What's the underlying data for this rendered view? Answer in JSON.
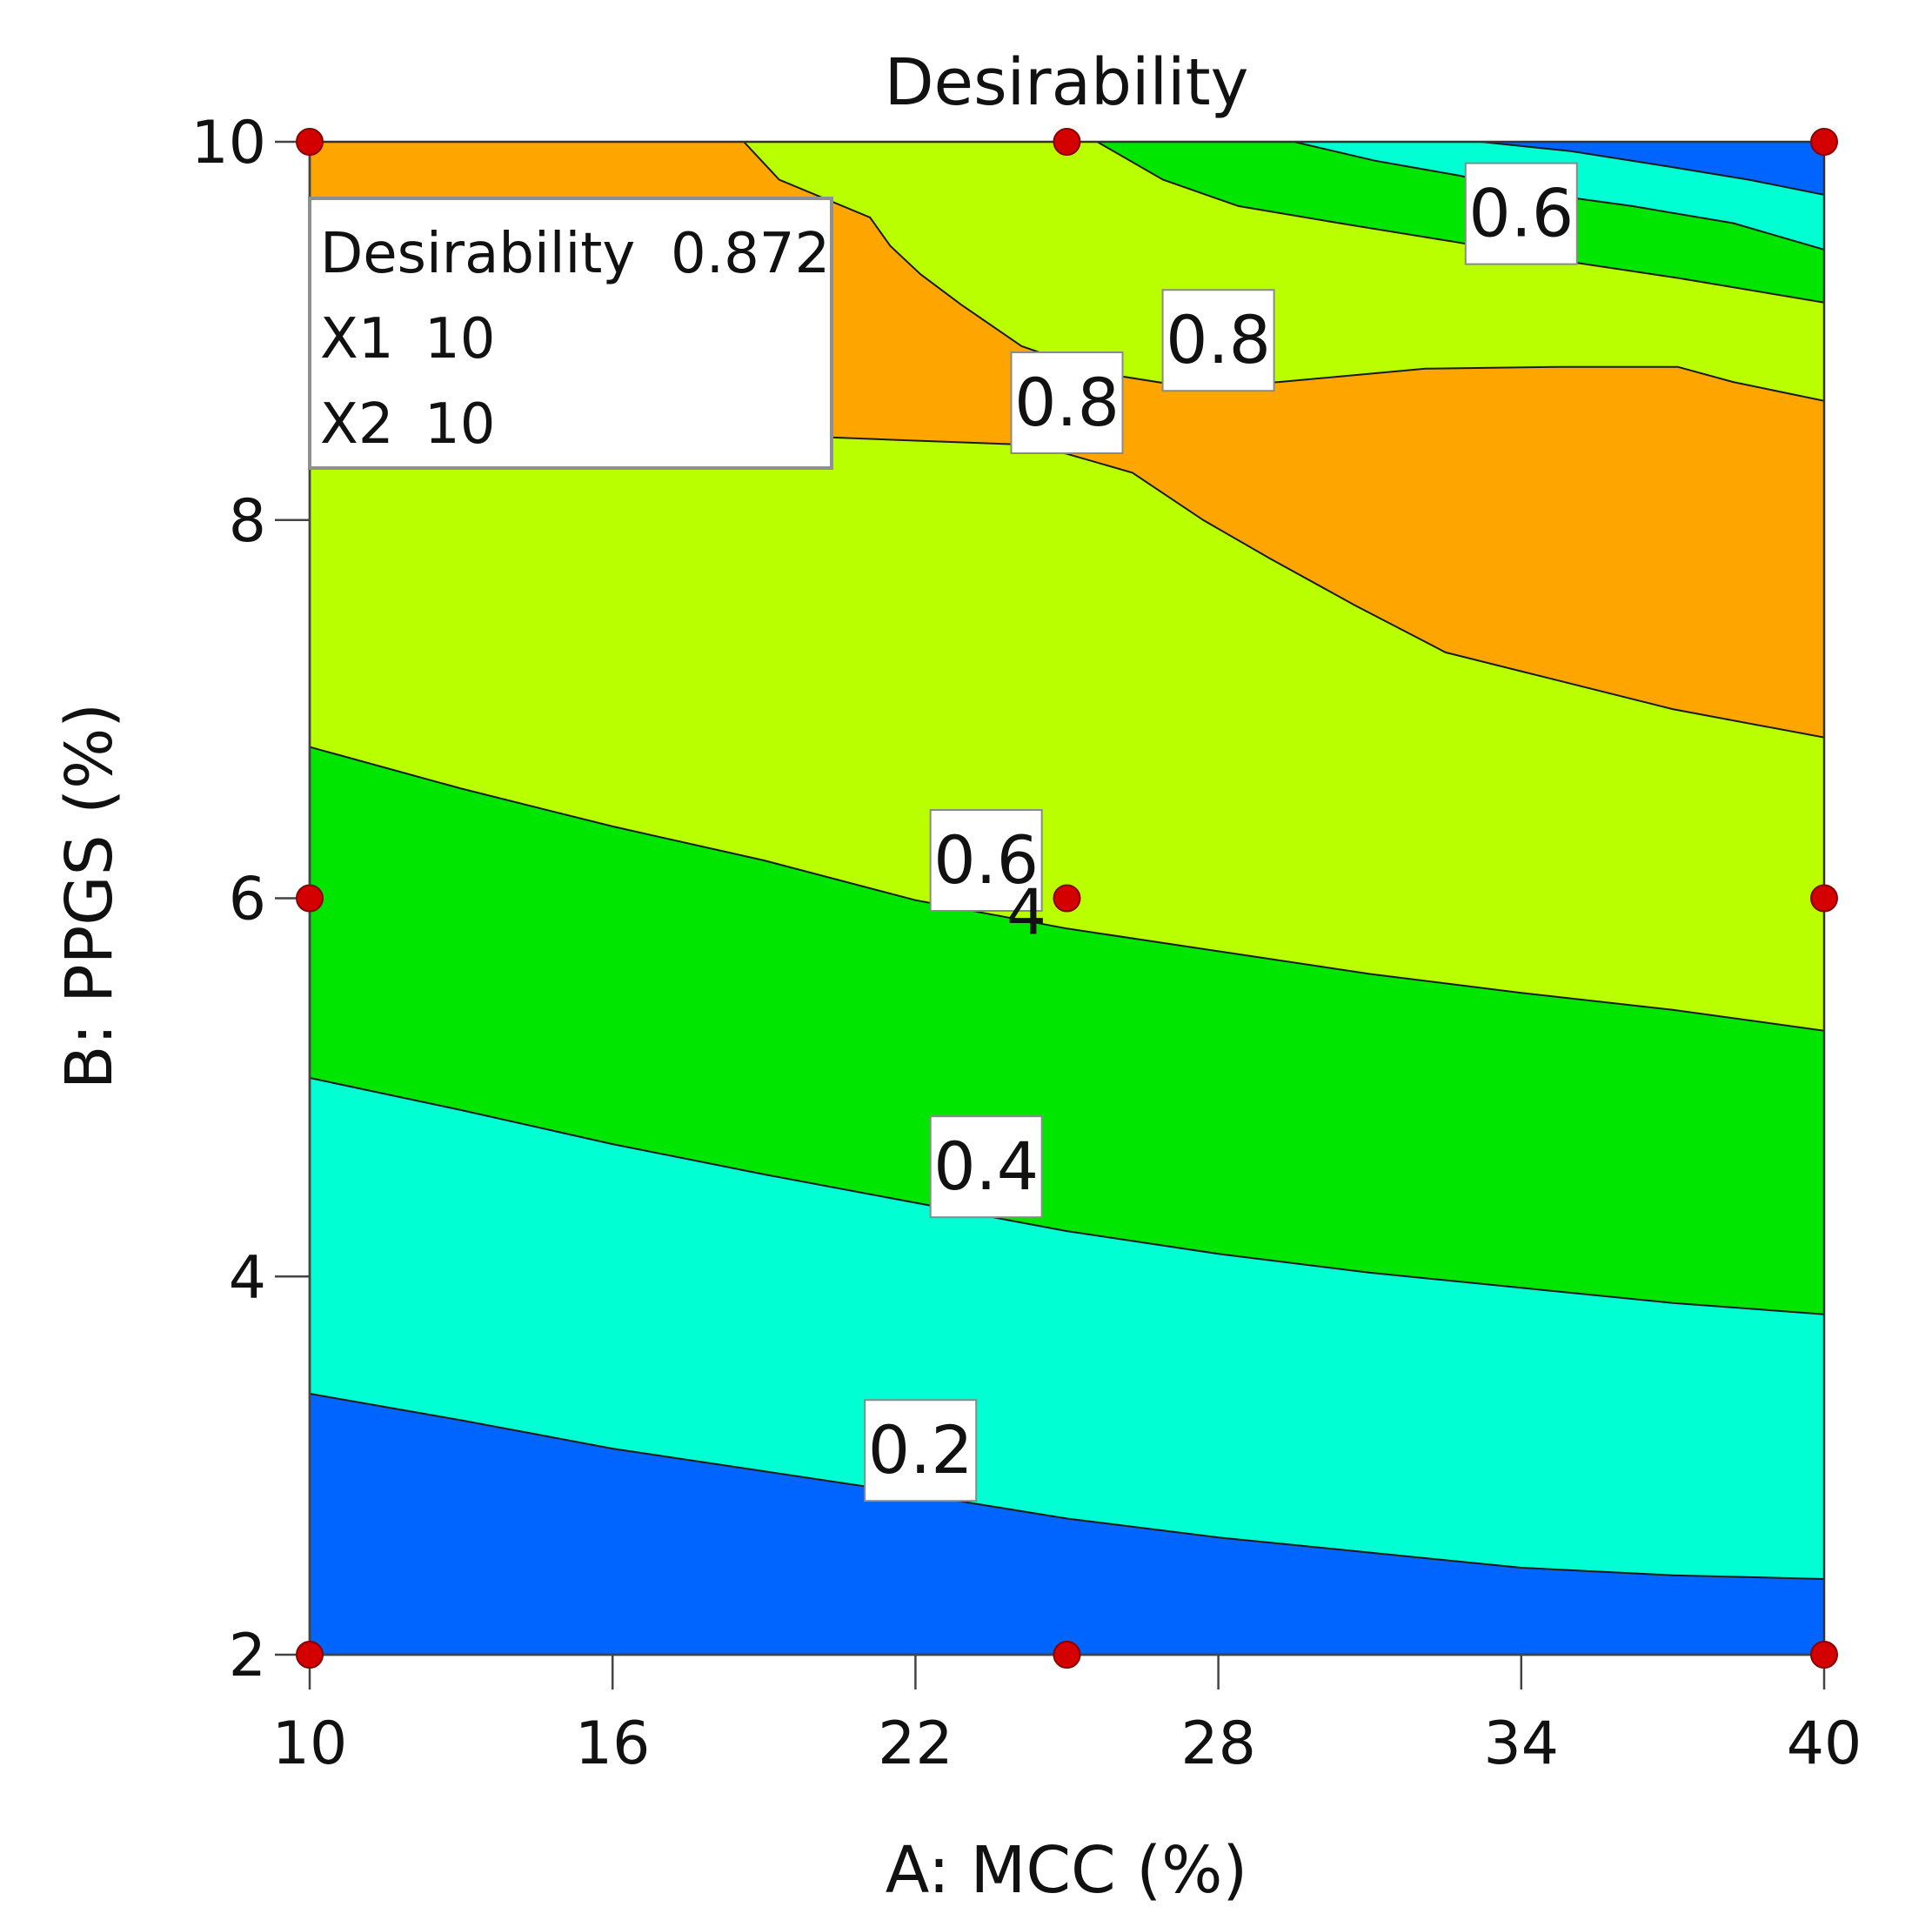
{
  "chart_data": {
    "type": "contour",
    "title": "Desirability",
    "xlabel": "A: MCC (%)",
    "ylabel": "B: PPGS (%)",
    "xlim": [
      10,
      40
    ],
    "ylim": [
      2,
      10
    ],
    "xticks": [
      "10",
      "16",
      "22",
      "28",
      "34",
      "40"
    ],
    "xtick_values": [
      10,
      16,
      22,
      28,
      34,
      40
    ],
    "yticks": [
      "2",
      "4",
      "6",
      "8",
      "10"
    ],
    "ytick_values": [
      2,
      4,
      6,
      8,
      10
    ],
    "grid": false,
    "levels": [
      {
        "range": "0.0–0.2",
        "color": "#0064ff"
      },
      {
        "range": "0.2–0.4",
        "color": "#00ffd2"
      },
      {
        "range": "0.4–0.6",
        "color": "#00e600"
      },
      {
        "range": "0.6–0.8",
        "color": "#b9ff00"
      },
      {
        "range": "0.8–1.0",
        "color": "#ffa500"
      }
    ],
    "contour_lines": [
      {
        "level": "0.2",
        "x": [
          10,
          13,
          16,
          19,
          22,
          25,
          28,
          31,
          34,
          37,
          40
        ],
        "y": [
          3.38,
          3.24,
          3.09,
          2.97,
          2.85,
          2.72,
          2.62,
          2.54,
          2.46,
          2.42,
          2.4
        ]
      },
      {
        "level": "0.4",
        "x": [
          10,
          13,
          16,
          19,
          22,
          25,
          28,
          31,
          34,
          37,
          40
        ],
        "y": [
          5.05,
          4.88,
          4.7,
          4.54,
          4.39,
          4.24,
          4.12,
          4.02,
          3.94,
          3.86,
          3.8
        ]
      },
      {
        "level": "0.6",
        "x": [
          10,
          13,
          16,
          19,
          22,
          25,
          28,
          31,
          34,
          37,
          40
        ],
        "y": [
          6.8,
          6.58,
          6.38,
          6.2,
          5.99,
          5.84,
          5.72,
          5.6,
          5.5,
          5.41,
          5.3
        ]
      },
      {
        "level": "0.8",
        "x": [
          10,
          13,
          16,
          19,
          22,
          24,
          25,
          26.3,
          27.7,
          29,
          30.7,
          32.5,
          34,
          37,
          40
        ],
        "y": [
          8.45,
          8.45,
          8.45,
          8.45,
          8.42,
          8.4,
          8.35,
          8.25,
          8.0,
          7.8,
          7.55,
          7.3,
          7.2,
          7.0,
          6.85
        ]
      },
      {
        "level": "0.8",
        "x": [
          18.6,
          19.3,
          21.1,
          21.5,
          22.1,
          22.9,
          24.1,
          25.6,
          27.5,
          29.2,
          32.1,
          34.8,
          37.1,
          38.2,
          40
        ],
        "y": [
          10.0,
          9.8,
          9.6,
          9.45,
          9.3,
          9.14,
          8.92,
          8.78,
          8.7,
          8.73,
          8.8,
          8.81,
          8.81,
          8.73,
          8.63
        ]
      },
      {
        "level": "0.6",
        "x": [
          25.6,
          26.9,
          28.4,
          30.4,
          32.7,
          34.6,
          37.1,
          40
        ],
        "y": [
          10.0,
          9.8,
          9.66,
          9.57,
          9.47,
          9.38,
          9.28,
          9.15
        ]
      },
      {
        "level": "0.4",
        "x": [
          29.5,
          31.1,
          32.8,
          34.3,
          36.2,
          38.2,
          40
        ],
        "y": [
          10.0,
          9.9,
          9.82,
          9.73,
          9.66,
          9.57,
          9.43
        ]
      },
      {
        "level": "0.2",
        "x": [
          33.2,
          35.0,
          36.9,
          38.5,
          40
        ],
        "y": [
          10.0,
          9.95,
          9.87,
          9.8,
          9.72
        ]
      }
    ],
    "contour_labels": [
      {
        "text": "0.2",
        "x": 22.1,
        "y": 3.08
      },
      {
        "text": "0.4",
        "x": 23.4,
        "y": 4.58
      },
      {
        "text": "0.6",
        "x": 23.4,
        "y": 6.2
      },
      {
        "text": "0.8",
        "x": 25.0,
        "y": 8.62
      },
      {
        "text": "0.8",
        "x": 28.0,
        "y": 8.95
      },
      {
        "text": "0.6",
        "x": 34.0,
        "y": 9.62
      }
    ],
    "design_points": [
      {
        "x": 10,
        "y": 10
      },
      {
        "x": 25,
        "y": 10
      },
      {
        "x": 40,
        "y": 10
      },
      {
        "x": 10,
        "y": 6
      },
      {
        "x": 25,
        "y": 6
      },
      {
        "x": 40,
        "y": 6
      },
      {
        "x": 10,
        "y": 2
      },
      {
        "x": 25,
        "y": 2
      },
      {
        "x": 40,
        "y": 2
      }
    ],
    "center_point_label": {
      "text": "4",
      "x": 24.2,
      "y": 5.93
    },
    "flag_point": {
      "x": 10,
      "y": 10
    },
    "flag_box": {
      "rows": [
        {
          "name": "Desirability",
          "value": "0.872"
        },
        {
          "name": "X1",
          "value": "10"
        },
        {
          "name": "X2",
          "value": "10"
        }
      ]
    }
  }
}
